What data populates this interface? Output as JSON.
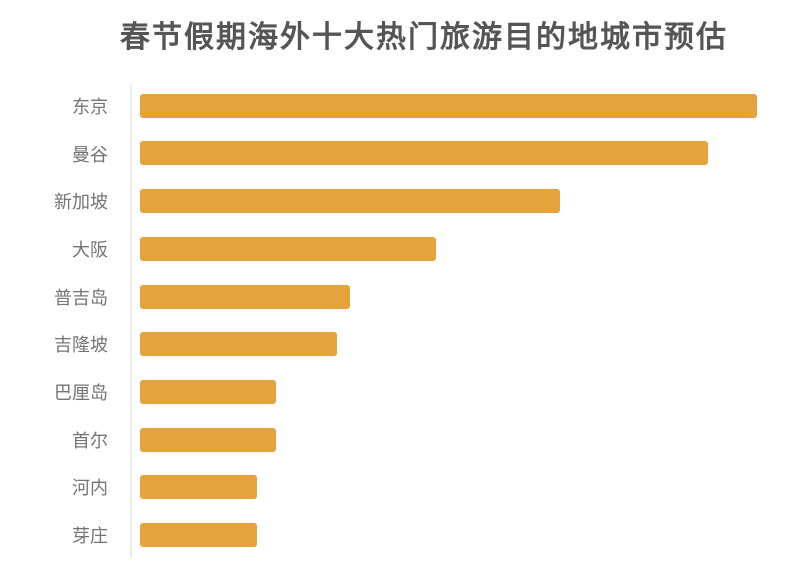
{
  "page": {
    "background_color": "#ffffff"
  },
  "chart": {
    "title": "春节假期海外十大热门旅游目的地城市预估",
    "title_color": "#555555",
    "bar_color": "#E6A23C",
    "label_color": "#747474",
    "axis_line_color": "#EDEDED"
  },
  "chart_data": {
    "type": "bar",
    "orientation": "horizontal",
    "title": "春节假期海外十大热门旅游目的地城市预估",
    "categories": [
      "东京",
      "曼谷",
      "新加坡",
      "大阪",
      "普吉岛",
      "吉隆坡",
      "巴厘岛",
      "首尔",
      "河内",
      "芽庄"
    ],
    "values": [
      100,
      92,
      68,
      48,
      34,
      32,
      22,
      22,
      19,
      19
    ],
    "value_note": "no numeric axis shown; values are relative index estimated from bar lengths, max normalized to 100",
    "xlabel": "",
    "ylabel": "",
    "xlim": [
      0,
      100
    ],
    "grid": false,
    "legend": false,
    "value_labels_shown": false,
    "axis_tick_labels_shown": false
  }
}
